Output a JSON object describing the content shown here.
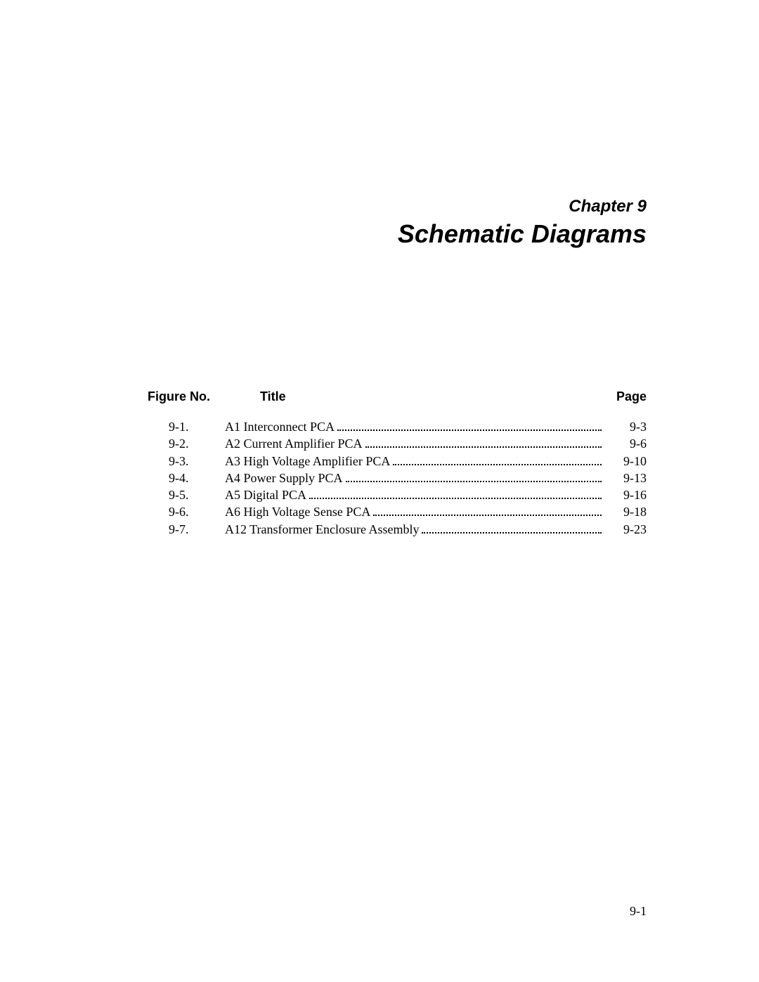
{
  "chapter_label": "Chapter 9",
  "chapter_title": "Schematic Diagrams",
  "headers": {
    "figure_no": "Figure No.",
    "title": "Title",
    "page": "Page"
  },
  "entries": [
    {
      "figure": "9-1.",
      "title": "A1 Interconnect PCA",
      "page": "9-3"
    },
    {
      "figure": "9-2.",
      "title": "A2 Current Amplifier PCA",
      "page": "9-6"
    },
    {
      "figure": "9-3.",
      "title": "A3 High Voltage Amplifier PCA",
      "page": "9-10"
    },
    {
      "figure": "9-4.",
      "title": "A4 Power Supply PCA",
      "page": "9-13"
    },
    {
      "figure": "9-5.",
      "title": "A5 Digital PCA",
      "page": "9-16"
    },
    {
      "figure": "9-6.",
      "title": "A6 High Voltage Sense PCA",
      "page": "9-18"
    },
    {
      "figure": "9-7.",
      "title": "A12 Transformer Enclosure Assembly",
      "page": "9-23"
    }
  ],
  "footer_page": "9-1"
}
